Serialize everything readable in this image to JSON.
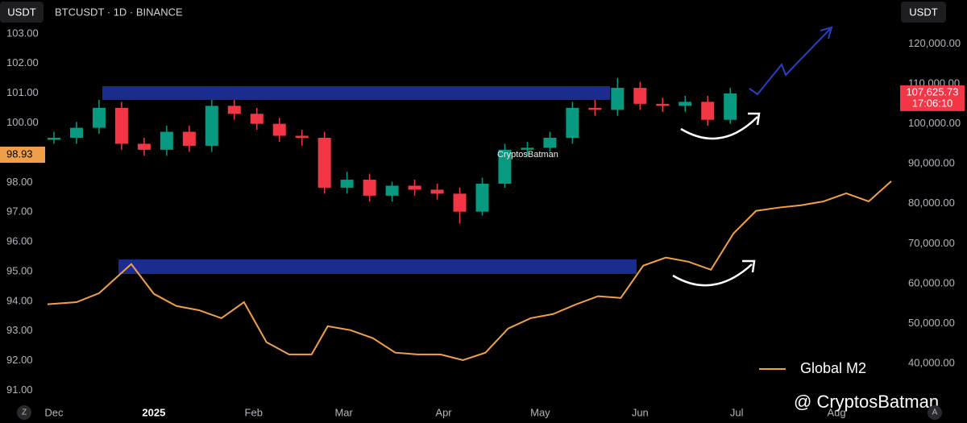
{
  "chart_data": {
    "type": "candlestick",
    "title": "BTCUSDT · 1D · BINANCE",
    "y_unit": "USDT",
    "y2_unit": "USDT",
    "xlim": [
      -3,
      261
    ],
    "xticks": [
      {
        "value": 0,
        "label": "Dec"
      },
      {
        "value": 31,
        "label": "2025"
      },
      {
        "value": 62,
        "label": "Feb"
      },
      {
        "value": 90,
        "label": "Mar"
      },
      {
        "value": 121,
        "label": "Apr"
      },
      {
        "value": 151,
        "label": "May"
      },
      {
        "value": 182,
        "label": "Jun"
      },
      {
        "value": 212,
        "label": "Jul"
      },
      {
        "value": 243,
        "label": "Aug"
      }
    ],
    "ylim": [
      90.5,
      104
    ],
    "yticks": [
      {
        "value": 91,
        "label": "91.00"
      },
      {
        "value": 92,
        "label": "92.00"
      },
      {
        "value": 93,
        "label": "93.00"
      },
      {
        "value": 94,
        "label": "94.00"
      },
      {
        "value": 95,
        "label": "95.00"
      },
      {
        "value": 96,
        "label": "96.00"
      },
      {
        "value": 97,
        "label": "97.00"
      },
      {
        "value": 98,
        "label": "98.00"
      },
      {
        "value": 99,
        "label": "99.00"
      },
      {
        "value": 100,
        "label": "100.00"
      },
      {
        "value": 101,
        "label": "101.00"
      },
      {
        "value": 102,
        "label": "102.00"
      },
      {
        "value": 103,
        "label": "103.00"
      }
    ],
    "y2lim": [
      29500,
      130000
    ],
    "y2ticks": [
      {
        "value": 40000,
        "label": "40,000.00"
      },
      {
        "value": 50000,
        "label": "50,000.00"
      },
      {
        "value": 60000,
        "label": "60,000.00"
      },
      {
        "value": 70000,
        "label": "70,000.00"
      },
      {
        "value": 80000,
        "label": "80,000.00"
      },
      {
        "value": 90000,
        "label": "90,000.00"
      },
      {
        "value": 100000,
        "label": "100,000.00"
      },
      {
        "value": 110000,
        "label": "110,000.00"
      },
      {
        "value": 120000,
        "label": "120,000.00"
      }
    ],
    "series": [
      {
        "type": "candlestick",
        "axis": "y2",
        "up_color": "#089981",
        "down_color": "#f23645",
        "x": [
          0,
          7,
          14,
          21,
          28,
          35,
          42,
          49,
          56,
          63,
          70,
          77,
          84,
          91,
          98,
          105,
          112,
          119,
          126,
          133,
          140,
          147,
          154,
          161,
          168,
          175,
          182,
          189,
          196,
          203,
          210
        ],
        "open": [
          96000,
          96500,
          99000,
          104000,
          95000,
          93500,
          98000,
          94500,
          104500,
          102500,
          100000,
          97000,
          96500,
          84000,
          86000,
          82000,
          84500,
          83500,
          82500,
          78000,
          85000,
          93500,
          94000,
          96500,
          104000,
          103500,
          109000,
          105000,
          104500,
          105500,
          101000
        ],
        "high": [
          98000,
          100500,
          106000,
          105500,
          96500,
          99500,
          99500,
          106000,
          106000,
          104000,
          101500,
          98500,
          98000,
          88000,
          87500,
          85500,
          86000,
          85000,
          84000,
          86500,
          95000,
          95500,
          98000,
          105500,
          106000,
          111500,
          110500,
          106500,
          107000,
          107000,
          109000
        ],
        "low": [
          95000,
          95000,
          97500,
          93500,
          92000,
          92000,
          93000,
          93000,
          101000,
          98500,
          95500,
          94500,
          82500,
          82500,
          80500,
          80500,
          82000,
          81000,
          75000,
          77000,
          84000,
          92000,
          93000,
          95000,
          102000,
          102000,
          103500,
          103000,
          103000,
          99500,
          100000
        ],
        "close": [
          96500,
          99000,
          104000,
          95000,
          93500,
          98000,
          94500,
          104500,
          102500,
          100000,
          97000,
          96500,
          84000,
          86000,
          82000,
          84500,
          83500,
          82500,
          78000,
          85000,
          93500,
          94000,
          96500,
          104000,
          103500,
          109000,
          105000,
          104500,
          105500,
          101000,
          107600
        ]
      },
      {
        "type": "line",
        "name": "Global M2",
        "color": "#f0a04b",
        "x": [
          -2,
          7,
          14,
          24,
          31,
          38,
          45,
          52,
          59,
          66,
          73,
          80,
          85,
          92,
          99,
          106,
          113,
          120,
          127,
          134,
          141,
          148,
          155,
          162,
          169,
          176,
          183,
          190,
          197,
          204,
          211,
          218,
          225,
          232,
          239,
          246,
          253,
          260
        ],
        "values": [
          93.9,
          93.97,
          94.27,
          95.25,
          94.25,
          93.84,
          93.7,
          93.43,
          93.97,
          92.62,
          92.21,
          92.21,
          93.16,
          93.03,
          92.76,
          92.27,
          92.21,
          92.21,
          92.02,
          92.27,
          93.08,
          93.43,
          93.57,
          93.89,
          94.17,
          94.11,
          95.2,
          95.47,
          95.33,
          95.06,
          96.28,
          97.04,
          97.15,
          97.23,
          97.36,
          97.63,
          97.36,
          98.04
        ]
      }
    ],
    "last_price": {
      "value": 107625.73,
      "label": "107,625.73"
    },
    "countdown": "17:06:10",
    "m2_marker": {
      "value": 98.93,
      "label": "98.93"
    },
    "watermark": "CryptosBatman",
    "credit": "@ CryptosBatman"
  },
  "ui": {
    "left_button": "Z",
    "right_button": "A"
  }
}
